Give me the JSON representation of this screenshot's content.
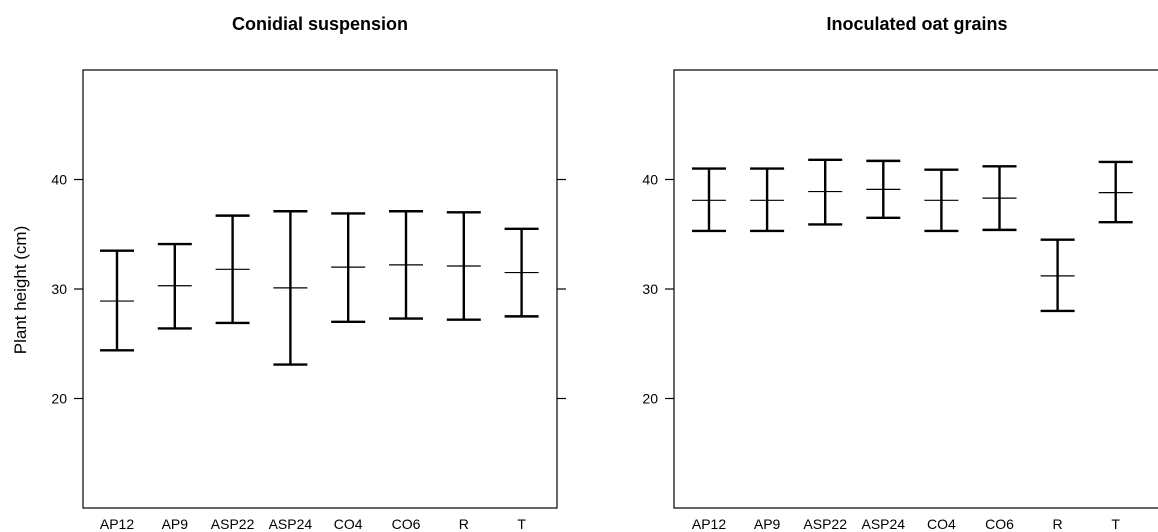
{
  "ylabel": "Plant height (cm)",
  "chart_data": [
    {
      "type": "errorbar",
      "title": "Conidial suspension",
      "ylabel": "Plant height (cm)",
      "ylim": [
        10,
        50
      ],
      "yticks": [
        20,
        30,
        40
      ],
      "grid": false,
      "categories": [
        "AP12",
        "AP9",
        "ASP22",
        "ASP24",
        "CO4",
        "CO6",
        "R",
        "T"
      ],
      "series": [
        {
          "mean": [
            28.9,
            30.3,
            31.8,
            30.1,
            32.0,
            32.2,
            32.1,
            31.5
          ],
          "lower": [
            24.4,
            26.4,
            26.9,
            23.1,
            27.0,
            27.3,
            27.2,
            27.5
          ],
          "upper": [
            33.5,
            34.1,
            36.7,
            37.1,
            36.9,
            37.1,
            37.0,
            35.5
          ]
        }
      ]
    },
    {
      "type": "errorbar",
      "title": "Inoculated oat grains",
      "ylabel": "",
      "ylim": [
        10,
        50
      ],
      "yticks": [
        20,
        30,
        40
      ],
      "grid": false,
      "categories": [
        "AP12",
        "AP9",
        "ASP22",
        "ASP24",
        "CO4",
        "CO6",
        "R",
        "T"
      ],
      "series": [
        {
          "mean": [
            38.1,
            38.1,
            38.9,
            39.1,
            38.1,
            38.3,
            31.2,
            38.8
          ],
          "lower": [
            35.3,
            35.3,
            35.9,
            36.5,
            35.3,
            35.4,
            28.0,
            36.1
          ],
          "upper": [
            41.0,
            41.0,
            41.8,
            41.7,
            40.9,
            41.2,
            34.5,
            41.6
          ]
        }
      ]
    }
  ]
}
